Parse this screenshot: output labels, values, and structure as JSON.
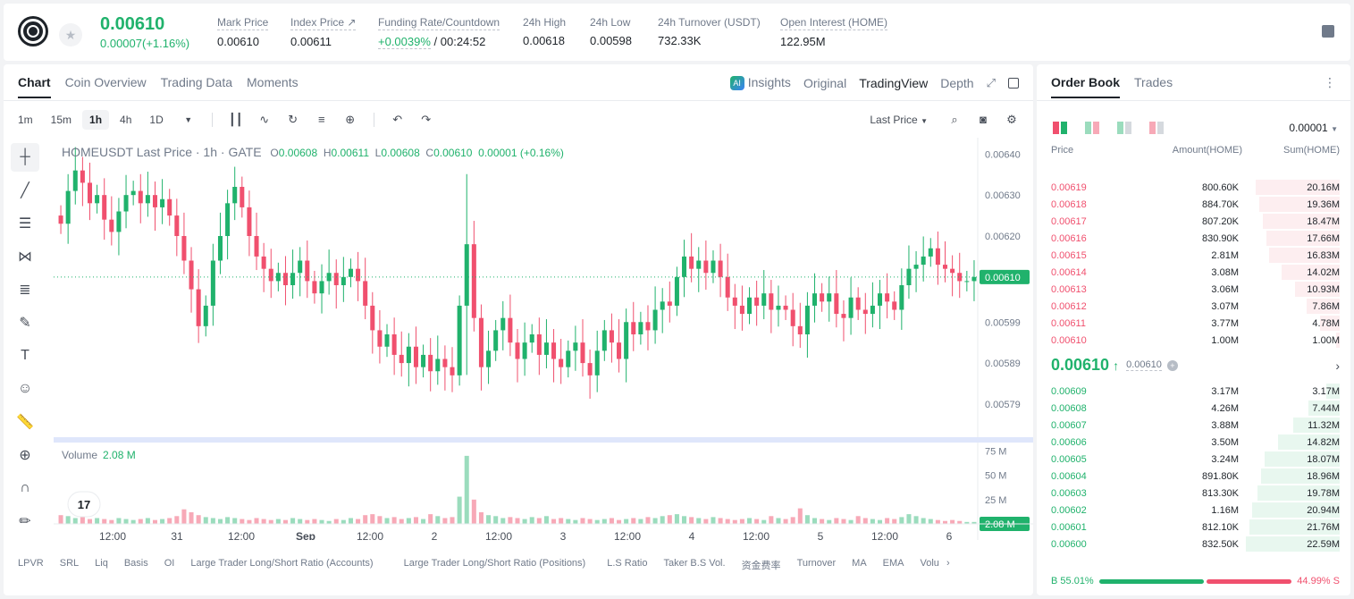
{
  "ticker": {
    "price": "0.00610",
    "change": "0.00007(+1.16%)",
    "stats": [
      {
        "label": "Mark Price",
        "value": "0.00610"
      },
      {
        "label": "Index Price ↗",
        "value": "0.00611"
      },
      {
        "label": "Funding Rate/Countdown",
        "value_green": "+0.0039%",
        "value": " / 00:24:52"
      },
      {
        "label": "24h High",
        "value": "0.00618"
      },
      {
        "label": "24h Low",
        "value": "0.00598"
      },
      {
        "label": "24h Turnover (USDT)",
        "value": "732.33K"
      },
      {
        "label": "Open Interest (HOME)",
        "value": "122.95M"
      }
    ]
  },
  "chart_tabs": {
    "left": [
      "Chart",
      "Coin Overview",
      "Trading Data",
      "Moments"
    ],
    "right": [
      "Insights",
      "Original",
      "TradingView",
      "Depth"
    ],
    "ai_badge": "AI"
  },
  "timeframes": [
    "1m",
    "15m",
    "1h",
    "4h",
    "1D"
  ],
  "last_price_select": "Last Price",
  "legend": {
    "symbol": "HOMEUSDT Last Price · 1h · GATE",
    "o_label": "O",
    "o": "0.00608",
    "h_label": "H",
    "h": "0.00611",
    "l_label": "L",
    "l": "0.00608",
    "c_label": "C",
    "c": "0.00610",
    "chg": "0.00001 (+0.16%)"
  },
  "volume_legend": {
    "label": "Volume",
    "value": "2.08 M"
  },
  "chart_data": {
    "type": "candlestick",
    "price_axis": [
      "0.00640",
      "0.00630",
      "0.00620",
      "0.00610",
      "0.00599",
      "0.00589",
      "0.00579"
    ],
    "current_price_label": "0.00610",
    "volume_axis": [
      "75 M",
      "50 M",
      "25 M"
    ],
    "current_volume_label": "2.08 M",
    "time_axis": [
      "12:00",
      "31",
      "12:00",
      "Sep",
      "12:00",
      "2",
      "12:00",
      "3",
      "12:00",
      "4",
      "12:00",
      "5",
      "12:00",
      "6"
    ],
    "closes": [
      0.00623,
      0.00631,
      0.00636,
      0.00633,
      0.00628,
      0.0063,
      0.00624,
      0.00621,
      0.00626,
      0.0063,
      0.00631,
      0.00628,
      0.0063,
      0.00627,
      0.00629,
      0.00625,
      0.0062,
      0.00614,
      0.00607,
      0.00598,
      0.00603,
      0.00614,
      0.0062,
      0.00628,
      0.00632,
      0.00627,
      0.0062,
      0.00615,
      0.00612,
      0.00609,
      0.00611,
      0.00608,
      0.00611,
      0.00614,
      0.00609,
      0.00606,
      0.00609,
      0.00611,
      0.00608,
      0.0061,
      0.00612,
      0.00609,
      0.00603,
      0.00597,
      0.00593,
      0.00596,
      0.00591,
      0.00589,
      0.00593,
      0.00588,
      0.00591,
      0.00587,
      0.0059,
      0.00588,
      0.00586,
      0.00603,
      0.00618,
      0.006,
      0.00588,
      0.00592,
      0.00597,
      0.006,
      0.00594,
      0.0059,
      0.00594,
      0.00596,
      0.00591,
      0.00594,
      0.0059,
      0.00588,
      0.00592,
      0.00594,
      0.00589,
      0.00586,
      0.00592,
      0.00597,
      0.00594,
      0.0059,
      0.00599,
      0.00596,
      0.00599,
      0.00597,
      0.00602,
      0.00604,
      0.00603,
      0.0061,
      0.00615,
      0.00612,
      0.00614,
      0.00611,
      0.00614,
      0.0061,
      0.00605,
      0.00603,
      0.00601,
      0.00605,
      0.00603,
      0.00606,
      0.00602,
      0.00603,
      0.00602,
      0.00598,
      0.00596,
      0.00603,
      0.00606,
      0.00604,
      0.00606,
      0.00601,
      0.006,
      0.00605,
      0.00602,
      0.00601,
      0.00603,
      0.00606,
      0.00604,
      0.00602,
      0.00608,
      0.00612,
      0.00613,
      0.00615,
      0.00617,
      0.00613,
      0.00612,
      0.00611,
      0.00609,
      0.00609,
      0.0061
    ],
    "volumes": [
      9,
      8,
      6,
      7,
      5,
      6,
      5,
      4,
      6,
      5,
      4,
      5,
      6,
      4,
      5,
      6,
      8,
      15,
      12,
      9,
      7,
      6,
      5,
      7,
      6,
      5,
      4,
      6,
      5,
      4,
      5,
      4,
      6,
      5,
      4,
      5,
      4,
      3,
      5,
      4,
      6,
      5,
      9,
      10,
      8,
      6,
      7,
      5,
      6,
      7,
      5,
      10,
      8,
      6,
      7,
      28,
      70,
      25,
      12,
      9,
      8,
      6,
      7,
      6,
      5,
      7,
      6,
      8,
      5,
      6,
      5,
      4,
      6,
      5,
      4,
      5,
      6,
      4,
      5,
      6,
      5,
      7,
      6,
      8,
      9,
      10,
      8,
      7,
      6,
      5,
      7,
      6,
      5,
      4,
      5,
      6,
      5,
      4,
      8,
      6,
      5,
      7,
      16,
      9,
      6,
      5,
      4,
      6,
      5,
      4,
      8,
      6,
      5,
      4,
      6,
      5,
      7,
      10,
      8,
      6,
      5,
      4,
      3,
      4,
      3,
      2,
      2
    ]
  },
  "indicators": [
    "LPVR",
    "SRL",
    "Liq",
    "Basis",
    "OI",
    "Large Trader Long/Short Ratio (Accounts)",
    "Large Trader Long/Short Ratio (Positions)",
    "L.S Ratio",
    "Taker B.S Vol.",
    "资金费率",
    "Turnover",
    "MA",
    "EMA",
    "Volu"
  ],
  "orderbook": {
    "tabs": [
      "Order Book",
      "Trades"
    ],
    "tick": "0.00001",
    "headers": {
      "price": "Price",
      "amount": "Amount(HOME)",
      "sum": "Sum(HOME)"
    },
    "asks": [
      {
        "price": "0.00619",
        "amount": "800.60K",
        "sum": "20.16M",
        "depth": 0.9
      },
      {
        "price": "0.00618",
        "amount": "884.70K",
        "sum": "19.36M",
        "depth": 0.86
      },
      {
        "price": "0.00617",
        "amount": "807.20K",
        "sum": "18.47M",
        "depth": 0.82
      },
      {
        "price": "0.00616",
        "amount": "830.90K",
        "sum": "17.66M",
        "depth": 0.78
      },
      {
        "price": "0.00615",
        "amount": "2.81M",
        "sum": "16.83M",
        "depth": 0.75
      },
      {
        "price": "0.00614",
        "amount": "3.08M",
        "sum": "14.02M",
        "depth": 0.62
      },
      {
        "price": "0.00613",
        "amount": "3.06M",
        "sum": "10.93M",
        "depth": 0.48
      },
      {
        "price": "0.00612",
        "amount": "3.07M",
        "sum": "7.86M",
        "depth": 0.35
      },
      {
        "price": "0.00611",
        "amount": "3.77M",
        "sum": "4.78M",
        "depth": 0.21
      },
      {
        "price": "0.00610",
        "amount": "1.00M",
        "sum": "1.00M",
        "depth": 0.04
      }
    ],
    "mid_price": "0.00610",
    "mid_arrow": "↑",
    "mark_price": "0.00610",
    "mid_badge": "+",
    "bids": [
      {
        "price": "0.00609",
        "amount": "3.17M",
        "sum": "3.17M",
        "depth": 0.14
      },
      {
        "price": "0.00608",
        "amount": "4.26M",
        "sum": "7.44M",
        "depth": 0.33
      },
      {
        "price": "0.00607",
        "amount": "3.88M",
        "sum": "11.32M",
        "depth": 0.5
      },
      {
        "price": "0.00606",
        "amount": "3.50M",
        "sum": "14.82M",
        "depth": 0.66
      },
      {
        "price": "0.00605",
        "amount": "3.24M",
        "sum": "18.07M",
        "depth": 0.8
      },
      {
        "price": "0.00604",
        "amount": "891.80K",
        "sum": "18.96M",
        "depth": 0.84
      },
      {
        "price": "0.00603",
        "amount": "813.30K",
        "sum": "19.78M",
        "depth": 0.88
      },
      {
        "price": "0.00602",
        "amount": "1.16M",
        "sum": "20.94M",
        "depth": 0.93
      },
      {
        "price": "0.00601",
        "amount": "812.10K",
        "sum": "21.76M",
        "depth": 0.96
      },
      {
        "price": "0.00600",
        "amount": "832.50K",
        "sum": "22.59M",
        "depth": 1.0
      }
    ],
    "buy_ratio": "55.01%",
    "sell_ratio": "44.99%",
    "buy_fraction": 0.5501,
    "buy_label": "B",
    "sell_label": "S"
  },
  "colors": {
    "up": "#20b26c",
    "down": "#f0506e",
    "up_vol": "#9bdcbd",
    "down_vol": "#f7a9b7"
  }
}
